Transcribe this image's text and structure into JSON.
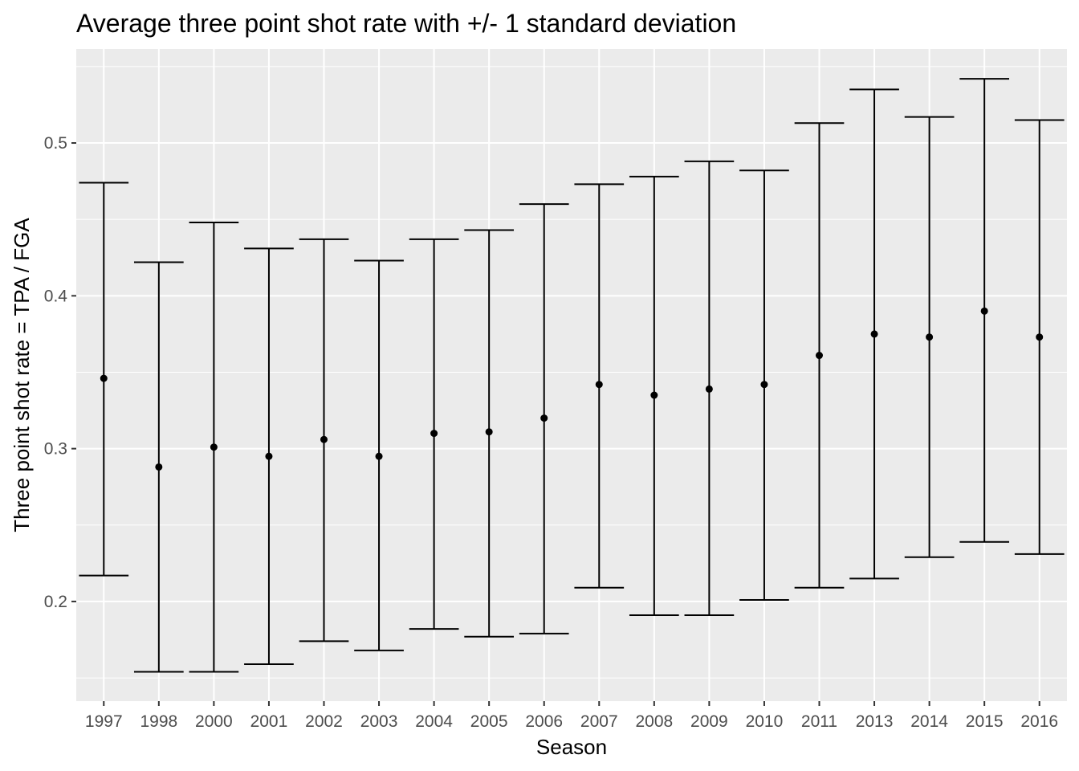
{
  "chart_data": {
    "type": "errorbar",
    "title": "Average three point shot rate with +/- 1 standard deviation",
    "xlabel": "Season",
    "ylabel": "Three point shot rate = TPA / FGA",
    "categories": [
      "1997",
      "1998",
      "2000",
      "2001",
      "2002",
      "2003",
      "2004",
      "2005",
      "2006",
      "2007",
      "2008",
      "2009",
      "2010",
      "2011",
      "2013",
      "2014",
      "2015",
      "2016"
    ],
    "series": [
      {
        "mean": [
          0.346,
          0.288,
          0.301,
          0.295,
          0.306,
          0.295,
          0.31,
          0.311,
          0.32,
          0.342,
          0.335,
          0.339,
          0.342,
          0.361,
          0.375,
          0.373,
          0.39,
          0.373
        ],
        "lower": [
          0.217,
          0.154,
          0.154,
          0.159,
          0.174,
          0.168,
          0.182,
          0.177,
          0.179,
          0.209,
          0.191,
          0.191,
          0.201,
          0.209,
          0.215,
          0.229,
          0.239,
          0.231
        ],
        "upper": [
          0.474,
          0.422,
          0.448,
          0.431,
          0.437,
          0.423,
          0.437,
          0.443,
          0.46,
          0.473,
          0.478,
          0.488,
          0.482,
          0.513,
          0.535,
          0.517,
          0.542,
          0.515
        ]
      }
    ],
    "ylim": [
      0.1348,
      0.5615
    ],
    "yticks": [
      0.2,
      0.3,
      0.4,
      0.5
    ],
    "ytick_labels": [
      "0.2",
      "0.3",
      "0.4",
      "0.5"
    ],
    "grid": true,
    "legend": "none",
    "colors": {
      "panel_background": "#ebebeb",
      "grid_major": "#ffffff",
      "marks": "#000000",
      "tick_text": "#4d4d4d"
    }
  }
}
